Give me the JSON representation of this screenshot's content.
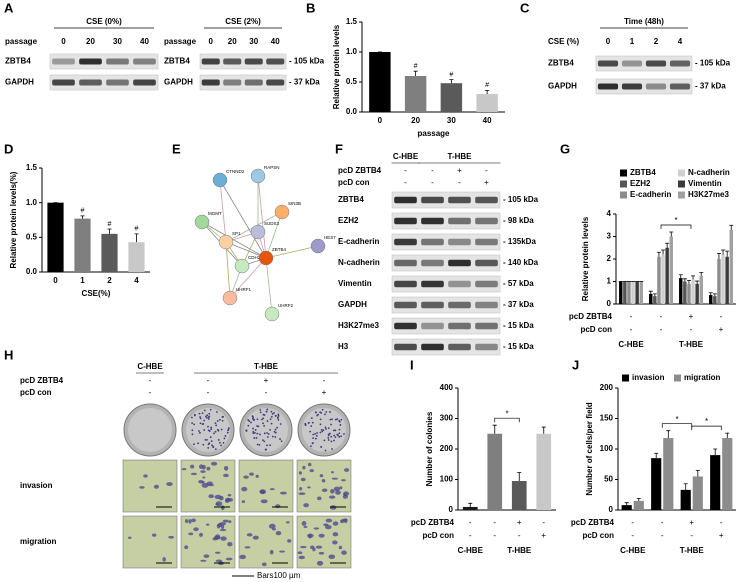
{
  "panel_labels": [
    "A",
    "B",
    "C",
    "D",
    "E",
    "F",
    "G",
    "H",
    "I",
    "J"
  ],
  "blot_a_left": {
    "title": "CSE (0%)",
    "lane_header": "passage",
    "lanes": [
      "0",
      "20",
      "30",
      "40"
    ],
    "rows": [
      "ZBTB4",
      "GAPDH"
    ]
  },
  "blot_a_right": {
    "title": "CSE (2%)",
    "lane_header": "passage",
    "lanes": [
      "0",
      "20",
      "30",
      "40"
    ],
    "rows": [
      "ZBTB4",
      "GAPDH"
    ],
    "markers": [
      "- 105 kDa",
      "- 37 kDa"
    ]
  },
  "blot_c": {
    "title": "Time (48h)",
    "lane_header": "CSE (%)",
    "lanes": [
      "0",
      "1",
      "2",
      "4"
    ],
    "rows": [
      "ZBTB4",
      "GAPDH"
    ],
    "markers": [
      "- 105 kDa",
      "- 37 kDa"
    ]
  },
  "blot_f": {
    "group_labels": [
      "C-HBE",
      "T-HBE",
      null,
      null
    ],
    "conditions": [
      {
        "name": "pcD ZBTB4",
        "signs": [
          "-",
          "-",
          "+",
          "-"
        ]
      },
      {
        "name": "pcD con",
        "signs": [
          "-",
          "-",
          "-",
          "+"
        ]
      }
    ],
    "rows": [
      "ZBTB4",
      "EZH2",
      "E-cadherin",
      "N-cadherin",
      "Vimentin",
      "GAPDH",
      "H3K27me3",
      "H3"
    ],
    "markers": [
      "- 105 kDa",
      "- 98 kDa",
      "- 135kDa",
      "- 140 kDa",
      "- 57 kDa",
      "- 37 kDa",
      "- 15 kDa",
      "- 15 kDa"
    ]
  },
  "network_e": {
    "nodes": [
      "CTNND2",
      "RAPSN",
      "MGMT",
      "SP1",
      "SUDS3",
      "SIN3B",
      "HES7",
      "CDH2",
      "ZBTB4",
      "UHRF1",
      "UHRF2"
    ]
  },
  "images_h": {
    "group_labels": [
      "C-HBE",
      "T-HBE",
      null,
      null
    ],
    "conditions": [
      {
        "name": "pcD ZBTB4",
        "signs": [
          "-",
          "-",
          "+",
          "-"
        ]
      },
      {
        "name": "pcD con",
        "signs": [
          "-",
          "-",
          "-",
          "+"
        ]
      }
    ],
    "rows": [
      "invasion",
      "migration"
    ],
    "scale_bar": "Bars100 µm"
  },
  "chart_data": [
    {
      "type": "bar",
      "y_label": "Relative protein levels",
      "x_label": "passage",
      "categories": [
        "0",
        "20",
        "30",
        "40"
      ],
      "values": [
        1.0,
        0.6,
        0.48,
        0.3
      ],
      "errors": [
        0,
        0.08,
        0.06,
        0.06
      ],
      "colors": [
        "#000000",
        "#7f7f7f",
        "#5a5a5a",
        "#c8c8c8"
      ],
      "value_annotations": [
        null,
        "#",
        "#",
        "#"
      ],
      "ylim": [
        0,
        1.5
      ],
      "yticks": [
        {
          "value": 0,
          "label": "0.0"
        },
        0.5,
        {
          "value": 1,
          "label": "1.0"
        },
        1.5
      ]
    },
    {
      "type": "bar",
      "y_label": "Relative protein levels(%)",
      "x_label": "CSE(%)",
      "categories": [
        "0",
        "1",
        "2",
        "4"
      ],
      "values": [
        1.0,
        0.77,
        0.55,
        0.43
      ],
      "errors": [
        0,
        0.04,
        0.07,
        0.12
      ],
      "colors": [
        "#000000",
        "#7f7f7f",
        "#5a5a5a",
        "#c8c8c8"
      ],
      "value_annotations": [
        null,
        "#",
        "#",
        "#"
      ],
      "ylim": [
        0,
        1.5
      ],
      "yticks": [
        {
          "value": 0,
          "label": "0.0"
        },
        0.5,
        {
          "value": 1,
          "label": "1.0"
        },
        1.5
      ]
    },
    {
      "type": "grouped_bar",
      "y_label": "Relative protein levels",
      "series": [
        {
          "name": "ZBTB4",
          "color": "#000000",
          "values": [
            1,
            0.45,
            1.15,
            0.4
          ],
          "errors": [
            0,
            0.12,
            0.15,
            0.1
          ]
        },
        {
          "name": "EZH2",
          "color": "#555555",
          "values": [
            1,
            0.35,
            1.0,
            0.35
          ],
          "errors": [
            0,
            0.1,
            0.12,
            0.1
          ]
        },
        {
          "name": "E-cadherin",
          "color": "#8c8c8c",
          "values": [
            1,
            2.1,
            0.9,
            2.0
          ],
          "errors": [
            0,
            0.2,
            0.15,
            0.25
          ]
        },
        {
          "name": "N-cadherin",
          "color": "#cfcfcf",
          "values": [
            1,
            2.2,
            1.1,
            2.2
          ],
          "errors": [
            0,
            0.2,
            0.15,
            0.2
          ]
        },
        {
          "name": "Vimentin",
          "color": "#3a3a3a",
          "values": [
            1,
            2.5,
            0.9,
            2.1
          ],
          "errors": [
            0,
            0.2,
            0.12,
            0.25
          ]
        },
        {
          "name": "H3K27me3",
          "color": "#a0a0a0",
          "values": [
            1,
            3.0,
            1.25,
            3.3
          ],
          "errors": [
            0,
            0.2,
            0.15,
            0.2
          ]
        }
      ],
      "conditions": [
        {
          "name": "pcD ZBTB4",
          "signs": [
            "-",
            "-",
            "+",
            "-"
          ]
        },
        {
          "name": "pcD con",
          "signs": [
            "-",
            "-",
            "-",
            "+"
          ]
        }
      ],
      "group_labels": [
        "C-HBE",
        "T-HBE",
        null,
        null
      ],
      "significance": [
        {
          "text": "*",
          "pair": [
            1,
            2
          ]
        }
      ],
      "ylim": [
        0,
        4
      ],
      "yticks": [
        0,
        1,
        2,
        3,
        4
      ]
    },
    {
      "type": "bar",
      "y_label": "Number of colonies",
      "values": [
        10,
        250,
        95,
        250
      ],
      "errors": [
        12,
        28,
        28,
        22
      ],
      "colors": [
        "#1a1a1a",
        "#7f7f7f",
        "#5a5a5a",
        "#c8c8c8"
      ],
      "conditions": [
        {
          "name": "pcD ZBTB4",
          "signs": [
            "-",
            "-",
            "+",
            "-"
          ]
        },
        {
          "name": "pcD con",
          "signs": [
            "-",
            "-",
            "-",
            "+"
          ]
        }
      ],
      "group_labels": [
        "C-HBE",
        "T-HBE",
        null,
        null
      ],
      "significance": [
        {
          "text": "*",
          "pair": [
            1,
            2
          ]
        }
      ],
      "ylim": [
        0,
        400
      ],
      "yticks": [
        0,
        100,
        200,
        300,
        400
      ]
    },
    {
      "type": "grouped_bar",
      "y_label": "Number of cells/per field",
      "series": [
        {
          "name": "invasion",
          "color": "#000000",
          "values": [
            8,
            85,
            33,
            90
          ],
          "errors": [
            4,
            8,
            10,
            10
          ]
        },
        {
          "name": "migration",
          "color": "#8c8c8c",
          "values": [
            15,
            118,
            55,
            118
          ],
          "errors": [
            4,
            12,
            10,
            8
          ]
        }
      ],
      "conditions": [
        {
          "name": "pcD ZBTB4",
          "signs": [
            "-",
            "-",
            "+",
            "-"
          ]
        },
        {
          "name": "pcD con",
          "signs": [
            "-",
            "-",
            "-",
            "+"
          ]
        }
      ],
      "group_labels": [
        "C-HBE",
        "T-HBE",
        null,
        null
      ],
      "significance": [
        {
          "text": "*",
          "pair": [
            1,
            2
          ]
        },
        {
          "text": "*",
          "pair": [
            2,
            3
          ]
        }
      ],
      "ylim": [
        0,
        200
      ],
      "yticks": [
        0,
        50,
        100,
        150,
        200
      ]
    }
  ]
}
